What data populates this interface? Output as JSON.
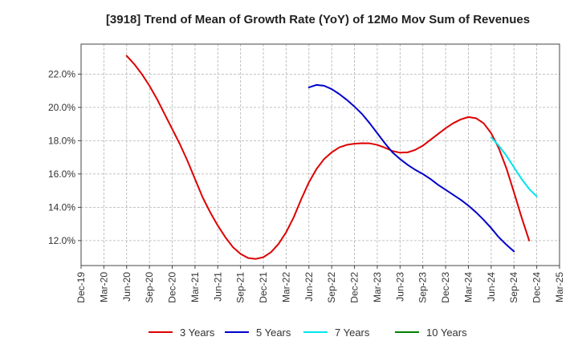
{
  "chart_data": {
    "type": "line",
    "title": "[3918]  Trend of Mean of Growth Rate (YoY) of 12Mo Mov Sum of Revenues",
    "xlabel": "",
    "ylabel": "",
    "ylim": [
      10.5,
      23.8
    ],
    "y_ticks": [
      12.0,
      14.0,
      16.0,
      18.0,
      20.0,
      22.0
    ],
    "y_tick_labels": [
      "12.0%",
      "14.0%",
      "16.0%",
      "18.0%",
      "20.0%",
      "22.0%"
    ],
    "x_start": "Dec-19",
    "x_tick_labels": [
      "Dec-19",
      "Mar-20",
      "Jun-20",
      "Sep-20",
      "Dec-20",
      "Mar-21",
      "Jun-21",
      "Sep-21",
      "Dec-21",
      "Mar-22",
      "Jun-22",
      "Sep-22",
      "Dec-22",
      "Mar-23",
      "Jun-23",
      "Sep-23",
      "Dec-23",
      "Mar-24",
      "Jun-24",
      "Sep-24",
      "Dec-24",
      "Mar-25"
    ],
    "grid": true,
    "legend_position": "bottom",
    "series": [
      {
        "name": "3 Years",
        "color": "#dd0000",
        "start_index": 6,
        "values": [
          23.1,
          22.6,
          22.0,
          21.3,
          20.5,
          19.6,
          18.7,
          17.8,
          16.8,
          15.7,
          14.6,
          13.7,
          12.9,
          12.2,
          11.6,
          11.2,
          10.95,
          10.9,
          11.0,
          11.3,
          11.8,
          12.5,
          13.4,
          14.5,
          15.5,
          16.3,
          16.9,
          17.3,
          17.6,
          17.75,
          17.82,
          17.85,
          17.84,
          17.75,
          17.58,
          17.38,
          17.28,
          17.3,
          17.45,
          17.7,
          18.05,
          18.4,
          18.75,
          19.05,
          19.28,
          19.42,
          19.35,
          19.05,
          18.45,
          17.55,
          16.35,
          14.9,
          13.4,
          12.0
        ]
      },
      {
        "name": "5 Years",
        "color": "#0000cc",
        "start_index": 30,
        "values": [
          21.2,
          21.35,
          21.3,
          21.1,
          20.8,
          20.45,
          20.05,
          19.6,
          19.05,
          18.45,
          17.85,
          17.3,
          16.9,
          16.55,
          16.25,
          16.0,
          15.7,
          15.35,
          15.05,
          14.75,
          14.45,
          14.1,
          13.7,
          13.25,
          12.75,
          12.2,
          11.75,
          11.35
        ]
      },
      {
        "name": "7 Years",
        "color": "#00e5ee",
        "start_index": 54,
        "values": [
          18.2,
          17.7,
          17.1,
          16.4,
          15.7,
          15.1,
          14.65
        ]
      },
      {
        "name": "10 Years",
        "color": "#008000",
        "start_index": 0,
        "values": []
      }
    ]
  }
}
